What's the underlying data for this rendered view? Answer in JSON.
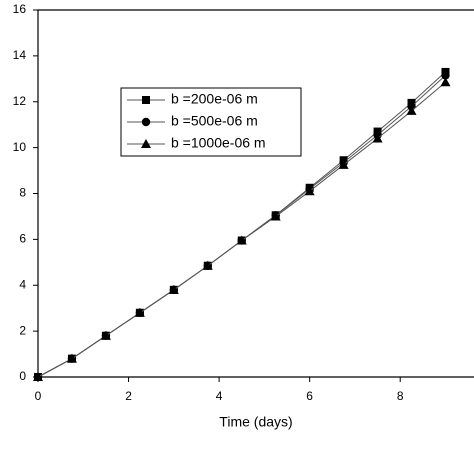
{
  "chart_data": {
    "type": "line",
    "xlabel": "Time (days)",
    "x": [
      0,
      0.75,
      1.5,
      2.25,
      3,
      3.75,
      4.5,
      5.25,
      6,
      6.75,
      7.5,
      8.25,
      9
    ],
    "series": [
      {
        "name": "b =200e-06 m",
        "color": "#000000",
        "marker": "square",
        "values": [
          0,
          0.8,
          1.8,
          2.8,
          3.8,
          4.85,
          5.95,
          7.05,
          8.25,
          9.45,
          10.7,
          11.95,
          13.3
        ]
      },
      {
        "name": "b =500e-06 m",
        "color": "#000000",
        "marker": "circle",
        "values": [
          0,
          0.8,
          1.8,
          2.8,
          3.8,
          4.85,
          5.95,
          7.05,
          8.2,
          9.35,
          10.55,
          11.8,
          13.15
        ]
      },
      {
        "name": "b =1000e-06 m",
        "color": "#000000",
        "marker": "triangle",
        "values": [
          0,
          0.8,
          1.8,
          2.8,
          3.8,
          4.85,
          5.95,
          7.0,
          8.1,
          9.25,
          10.4,
          11.6,
          12.85
        ]
      }
    ],
    "xlim": [
      0,
      9.63
    ],
    "xticks": [
      0,
      2,
      4,
      6,
      8
    ],
    "ylim": [
      0,
      16
    ],
    "yticks": [
      0,
      2,
      4,
      6,
      8,
      10,
      12,
      14,
      16
    ]
  }
}
